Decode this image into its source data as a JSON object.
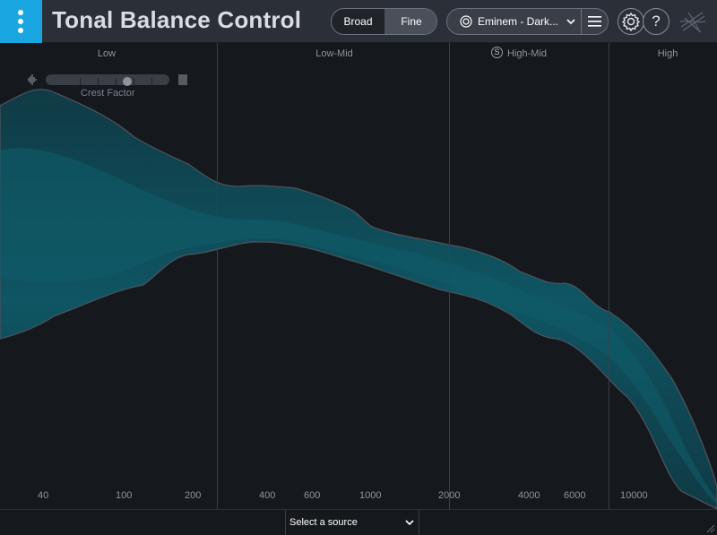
{
  "header": {
    "title": "Tonal Balance Control",
    "view_modes": {
      "broad": "Broad",
      "fine": "Fine",
      "selected": "Fine"
    },
    "preset": {
      "label": "Eminem - Dark..."
    },
    "icons": [
      "target-icon",
      "chevron-down-icon",
      "hamburger-menu-icon",
      "gear-icon",
      "help-icon",
      "izotope-logo-icon"
    ],
    "help_label": "?"
  },
  "bands": {
    "low": "Low",
    "low_mid": "Low-Mid",
    "high_mid": "High-Mid",
    "high": "High",
    "solo_label": "S"
  },
  "crest_factor": {
    "label": "Crest Factor"
  },
  "frequency_ticks": [
    "40",
    "100",
    "200",
    "400",
    "600",
    "1000",
    "2000",
    "4000",
    "6000",
    "10000"
  ],
  "footer": {
    "source_select": "Select a source"
  },
  "colors": {
    "accent": "#1aa6e0",
    "target_band": "#0e5e6a",
    "background": "#15181d",
    "header": "#2b3038"
  }
}
